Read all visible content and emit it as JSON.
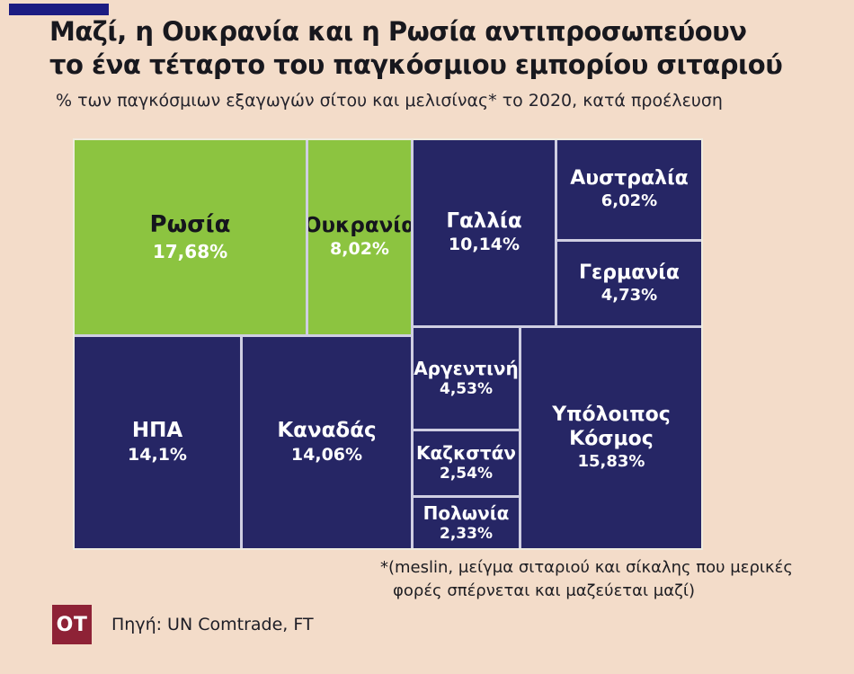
{
  "colors": {
    "background": "#f3dcc9",
    "accent_bar": "#1c1c82",
    "tile_navy": "#262665",
    "tile_green": "#8cc440",
    "tile_gap": "#cfcee2",
    "logo_bg": "#8e2236",
    "title_text": "#18181e"
  },
  "chart_data": {
    "type": "treemap",
    "title": "Μαζί, η Ουκρανία και η Ρωσία αντιπροσωπεύουν το ένα τέταρτο του παγκόσμιου εμπορίου σιταριού",
    "title_line1": "Μαζί, η Ουκρανία και η Ρωσία αντιπροσωπεύουν",
    "title_line2": "το ένα τέταρτο του παγκόσμιου εμπορίου σιταριού",
    "subtitle": "% των παγκόσμιων εξαγωγών σίτου και μελισίνας* το 2020, κατά προέλευση",
    "unit": "%",
    "year": "2020",
    "cells": [
      {
        "name": "Ρωσία",
        "pct_label": "17,68%",
        "value": 17.68,
        "color": "#8cc440",
        "name_color": "#15151d",
        "pct_color": "#ffffff",
        "highlight": true
      },
      {
        "name": "Ουκρανία",
        "pct_label": "8,02%",
        "value": 8.02,
        "color": "#8cc440",
        "name_color": "#15151d",
        "pct_color": "#ffffff",
        "highlight": true
      },
      {
        "name": "Γαλλία",
        "pct_label": "10,14%",
        "value": 10.14,
        "color": "#262665",
        "name_color": "#ffffff",
        "pct_color": "#ffffff",
        "highlight": false
      },
      {
        "name": "Αυστραλία",
        "pct_label": "6,02%",
        "value": 6.02,
        "color": "#262665",
        "name_color": "#ffffff",
        "pct_color": "#ffffff",
        "highlight": false
      },
      {
        "name": "Γερμανία",
        "pct_label": "4,73%",
        "value": 4.73,
        "color": "#262665",
        "name_color": "#ffffff",
        "pct_color": "#ffffff",
        "highlight": false
      },
      {
        "name": "ΗΠΑ",
        "pct_label": "14,1%",
        "value": 14.1,
        "color": "#262665",
        "name_color": "#ffffff",
        "pct_color": "#ffffff",
        "highlight": false
      },
      {
        "name": "Καναδάς",
        "pct_label": "14,06%",
        "value": 14.06,
        "color": "#262665",
        "name_color": "#ffffff",
        "pct_color": "#ffffff",
        "highlight": false
      },
      {
        "name": "Αργεντινή",
        "pct_label": "4,53%",
        "value": 4.53,
        "color": "#262665",
        "name_color": "#ffffff",
        "pct_color": "#ffffff",
        "highlight": false
      },
      {
        "name": "Καζκστάν",
        "pct_label": "2,54%",
        "value": 2.54,
        "color": "#262665",
        "name_color": "#ffffff",
        "pct_color": "#ffffff",
        "highlight": false
      },
      {
        "name": "Πολωνία",
        "pct_label": "2,33%",
        "value": 2.33,
        "color": "#262665",
        "name_color": "#ffffff",
        "pct_color": "#ffffff",
        "highlight": false
      },
      {
        "name": "Υπόλοιπος Κόσμος",
        "pct_label": "15,83%",
        "value": 15.83,
        "color": "#262665",
        "name_color": "#ffffff",
        "pct_color": "#ffffff",
        "highlight": false
      }
    ],
    "footnote_line1": "*(meslin, μείγμα σιταριού και σίκαλης που μερικές",
    "footnote_line2": "φορές σπέρνεται και μαζεύεται μαζί)",
    "source": "Πηγή: UN Comtrade, FT",
    "logo_text": "OT"
  }
}
